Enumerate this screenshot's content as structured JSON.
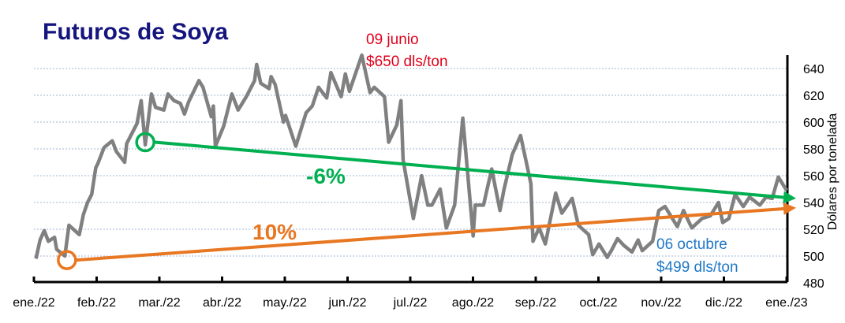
{
  "chart_data": {
    "type": "line",
    "title": "Futuros de Soya",
    "xlabel": "",
    "ylabel": "Dólares por tonelada",
    "x_unit": "days since 2022-01-01",
    "xlim": [
      0,
      365
    ],
    "ylim": [
      480,
      640
    ],
    "yticks": [
      480,
      500,
      520,
      540,
      560,
      580,
      600,
      620,
      640
    ],
    "grid": true,
    "xtick_labels": [
      "ene./22",
      "feb./22",
      "mar./22",
      "abr./22",
      "may./22",
      "jun./22",
      "jul./22",
      "ago./22",
      "sep./22",
      "oct./22",
      "nov./22",
      "dic./22",
      "ene./23"
    ],
    "series": [
      {
        "name": "Futuros de Soya",
        "color": "#808080",
        "x": [
          1,
          3,
          5,
          7,
          10,
          11,
          15,
          17,
          22,
          24,
          26,
          28,
          30,
          31,
          34,
          38,
          40,
          44,
          45,
          50,
          52,
          54,
          57,
          59,
          63,
          65,
          68,
          71,
          73,
          75,
          80,
          82,
          86,
          87,
          88,
          92,
          96,
          99,
          103,
          107,
          108,
          110,
          114,
          115,
          117,
          121,
          122,
          127,
          132,
          135,
          138,
          142,
          144,
          149,
          151,
          153,
          159,
          163,
          165,
          170,
          172,
          176,
          178,
          179,
          184,
          188,
          191,
          193,
          197,
          200,
          204,
          208,
          213,
          214,
          218,
          222,
          226,
          228,
          232,
          236,
          241,
          242,
          245,
          248,
          253,
          256,
          261,
          264,
          269,
          271,
          274,
          278,
          280,
          283,
          286,
          290,
          293,
          295,
          300,
          303,
          306,
          312,
          315,
          319,
          324,
          328,
          332,
          334,
          337,
          340,
          344,
          347,
          352,
          355,
          358,
          361,
          365
        ],
        "values": [
          498,
          512,
          519,
          511,
          514,
          505,
          500,
          523,
          516,
          531,
          540,
          546,
          566,
          569,
          581,
          586,
          578,
          570,
          584,
          599,
          616,
          583,
          621,
          611,
          609,
          621,
          616,
          614,
          606,
          615,
          631,
          626,
          604,
          612,
          582,
          597,
          621,
          609,
          619,
          631,
          643,
          629,
          625,
          634,
          628,
          600,
          605,
          582,
          607,
          612,
          626,
          618,
          637,
          619,
          636,
          623,
          650,
          622,
          626,
          619,
          585,
          598,
          616,
          572,
          528,
          560,
          538,
          538,
          550,
          521,
          538,
          603,
          515,
          538,
          538,
          565,
          534,
          550,
          576,
          590,
          554,
          511,
          521,
          509,
          547,
          532,
          543,
          523,
          516,
          501,
          509,
          499,
          504,
          513,
          508,
          503,
          512,
          504,
          511,
          534,
          537,
          522,
          534,
          521,
          528,
          530,
          540,
          525,
          528,
          546,
          537,
          544,
          538,
          544,
          543,
          559,
          549
        ]
      }
    ],
    "trend_lines": [
      {
        "name": "trend-green",
        "label": "-6%",
        "color": "#00b050",
        "from": [
          54,
          585
        ],
        "to": [
          365,
          543
        ]
      },
      {
        "name": "trend-orange",
        "label": "10%",
        "color": "#e87722",
        "from": [
          16,
          497
        ],
        "to": [
          365,
          536
        ]
      }
    ],
    "annotations": [
      {
        "name": "peak-annotation",
        "lines": [
          "09 junio",
          "$650 dls/ton"
        ],
        "color": "#e0001b"
      },
      {
        "name": "low-annotation",
        "lines": [
          "06 octubre",
          "$499 dls/ton"
        ],
        "color": "#1f78c8"
      }
    ],
    "title_color": "#15157f",
    "legend": "none"
  }
}
